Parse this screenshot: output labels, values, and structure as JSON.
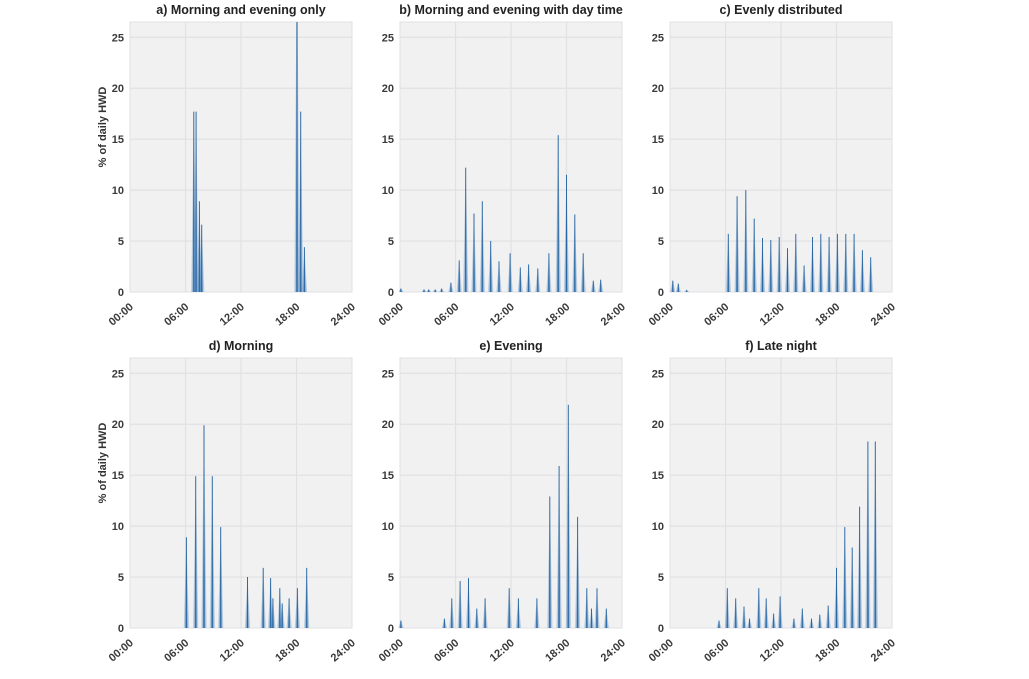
{
  "figure": {
    "y_axis_label": "% of daily HWD",
    "x_tick_labels": [
      "00:00",
      "06:00",
      "12:00",
      "18:00",
      "24:00"
    ],
    "y_tick_labels": [
      "0",
      "5",
      "10",
      "15",
      "20",
      "25"
    ],
    "accent_color": "#3d7cb7",
    "plot_bg_color": "#f1f1f2",
    "grid_color": "#e1e1e4"
  },
  "chart_data": [
    {
      "type": "area",
      "title": "a) Morning and evening only",
      "ylabel": "% of daily HWD",
      "xlabel": "",
      "xlim": [
        0,
        24
      ],
      "ylim": [
        0,
        26.5
      ],
      "x_ticks": [
        0,
        6,
        12,
        18,
        24
      ],
      "y_ticks": [
        0,
        5,
        10,
        15,
        20,
        25
      ],
      "grid": true,
      "spikes": [
        [
          6.9,
          17.8
        ],
        [
          7.15,
          17.8
        ],
        [
          7.5,
          9.0
        ],
        [
          7.75,
          6.7
        ],
        [
          18.05,
          26.5
        ],
        [
          18.45,
          17.8
        ],
        [
          18.85,
          4.5
        ]
      ]
    },
    {
      "type": "area",
      "title": "b) Morning and evening with day time",
      "ylabel": "",
      "xlabel": "",
      "xlim": [
        0,
        24
      ],
      "ylim": [
        0,
        26.5
      ],
      "x_ticks": [
        0,
        6,
        12,
        18,
        24
      ],
      "y_ticks": [
        0,
        5,
        10,
        15,
        20,
        25
      ],
      "grid": true,
      "spikes": [
        [
          0.1,
          0.4
        ],
        [
          2.6,
          0.3
        ],
        [
          3.1,
          0.3
        ],
        [
          3.8,
          0.3
        ],
        [
          4.5,
          0.4
        ],
        [
          5.5,
          1.0
        ],
        [
          6.4,
          3.2
        ],
        [
          7.1,
          12.3
        ],
        [
          8.0,
          7.8
        ],
        [
          8.9,
          9.0
        ],
        [
          9.8,
          5.1
        ],
        [
          10.7,
          3.1
        ],
        [
          11.9,
          3.9
        ],
        [
          13.0,
          2.5
        ],
        [
          13.9,
          2.8
        ],
        [
          14.9,
          2.4
        ],
        [
          16.1,
          3.9
        ],
        [
          17.1,
          15.5
        ],
        [
          18.0,
          11.6
        ],
        [
          18.9,
          7.7
        ],
        [
          19.8,
          3.9
        ],
        [
          20.9,
          1.2
        ],
        [
          21.7,
          1.3
        ]
      ]
    },
    {
      "type": "area",
      "title": "c) Evenly distributed",
      "ylabel": "",
      "xlabel": "",
      "xlim": [
        0,
        24
      ],
      "ylim": [
        0,
        26.5
      ],
      "x_ticks": [
        0,
        6,
        12,
        18,
        24
      ],
      "y_ticks": [
        0,
        5,
        10,
        15,
        20,
        25
      ],
      "grid": true,
      "spikes": [
        [
          0.3,
          1.2
        ],
        [
          0.9,
          0.9
        ],
        [
          1.8,
          0.25
        ],
        [
          6.3,
          5.8
        ],
        [
          7.25,
          9.5
        ],
        [
          8.2,
          10.1
        ],
        [
          9.1,
          7.3
        ],
        [
          10.0,
          5.4
        ],
        [
          10.9,
          5.2
        ],
        [
          11.8,
          5.5
        ],
        [
          12.7,
          4.4
        ],
        [
          13.6,
          5.8
        ],
        [
          14.5,
          2.7
        ],
        [
          15.4,
          5.5
        ],
        [
          16.3,
          5.8
        ],
        [
          17.2,
          5.5
        ],
        [
          18.1,
          5.8
        ],
        [
          19.0,
          5.8
        ],
        [
          19.9,
          5.8
        ],
        [
          20.8,
          4.2
        ],
        [
          21.7,
          3.5
        ]
      ]
    },
    {
      "type": "area",
      "title": "d) Morning",
      "ylabel": "% of daily HWD",
      "xlabel": "",
      "xlim": [
        0,
        24
      ],
      "ylim": [
        0,
        26.5
      ],
      "x_ticks": [
        0,
        6,
        12,
        18,
        24
      ],
      "y_ticks": [
        0,
        5,
        10,
        15,
        20,
        25
      ],
      "grid": true,
      "spikes": [
        [
          6.1,
          9.0
        ],
        [
          7.1,
          15.0
        ],
        [
          8.0,
          20.0
        ],
        [
          8.9,
          15.0
        ],
        [
          9.8,
          10.0
        ],
        [
          12.7,
          5.1
        ],
        [
          14.4,
          6.0
        ],
        [
          15.2,
          5.0
        ],
        [
          15.45,
          3.0
        ],
        [
          16.2,
          4.0
        ],
        [
          16.45,
          2.5
        ],
        [
          17.2,
          3.0
        ],
        [
          18.1,
          4.0
        ],
        [
          19.1,
          6.0
        ]
      ]
    },
    {
      "type": "area",
      "title": "e) Evening",
      "ylabel": "",
      "xlabel": "",
      "xlim": [
        0,
        24
      ],
      "ylim": [
        0,
        26.5
      ],
      "x_ticks": [
        0,
        6,
        12,
        18,
        24
      ],
      "y_ticks": [
        0,
        5,
        10,
        15,
        20,
        25
      ],
      "grid": true,
      "spikes": [
        [
          0.1,
          0.8
        ],
        [
          4.8,
          1.0
        ],
        [
          5.6,
          3.0
        ],
        [
          6.5,
          4.7
        ],
        [
          7.4,
          5.0
        ],
        [
          8.3,
          2.0
        ],
        [
          9.2,
          3.0
        ],
        [
          11.8,
          4.0
        ],
        [
          12.8,
          3.0
        ],
        [
          14.8,
          3.0
        ],
        [
          16.2,
          13.0
        ],
        [
          17.2,
          16.0
        ],
        [
          18.2,
          22.0
        ],
        [
          19.2,
          11.0
        ],
        [
          20.2,
          4.0
        ],
        [
          20.7,
          2.0
        ],
        [
          21.3,
          4.0
        ],
        [
          22.3,
          2.0
        ]
      ]
    },
    {
      "type": "area",
      "title": "f) Late night",
      "ylabel": "",
      "xlabel": "",
      "xlim": [
        0,
        24
      ],
      "ylim": [
        0,
        26.5
      ],
      "x_ticks": [
        0,
        6,
        12,
        18,
        24
      ],
      "y_ticks": [
        0,
        5,
        10,
        15,
        20,
        25
      ],
      "grid": true,
      "spikes": [
        [
          5.3,
          0.8
        ],
        [
          6.2,
          4.0
        ],
        [
          7.1,
          3.0
        ],
        [
          8.0,
          2.2
        ],
        [
          8.6,
          1.0
        ],
        [
          9.6,
          4.0
        ],
        [
          10.4,
          3.0
        ],
        [
          11.2,
          1.5
        ],
        [
          11.9,
          3.2
        ],
        [
          13.4,
          1.0
        ],
        [
          14.3,
          2.0
        ],
        [
          15.3,
          1.0
        ],
        [
          16.2,
          1.4
        ],
        [
          17.1,
          2.3
        ],
        [
          18.0,
          6.0
        ],
        [
          18.9,
          10.0
        ],
        [
          19.7,
          8.0
        ],
        [
          20.5,
          12.0
        ],
        [
          21.4,
          18.4
        ],
        [
          22.2,
          18.4
        ]
      ]
    }
  ]
}
